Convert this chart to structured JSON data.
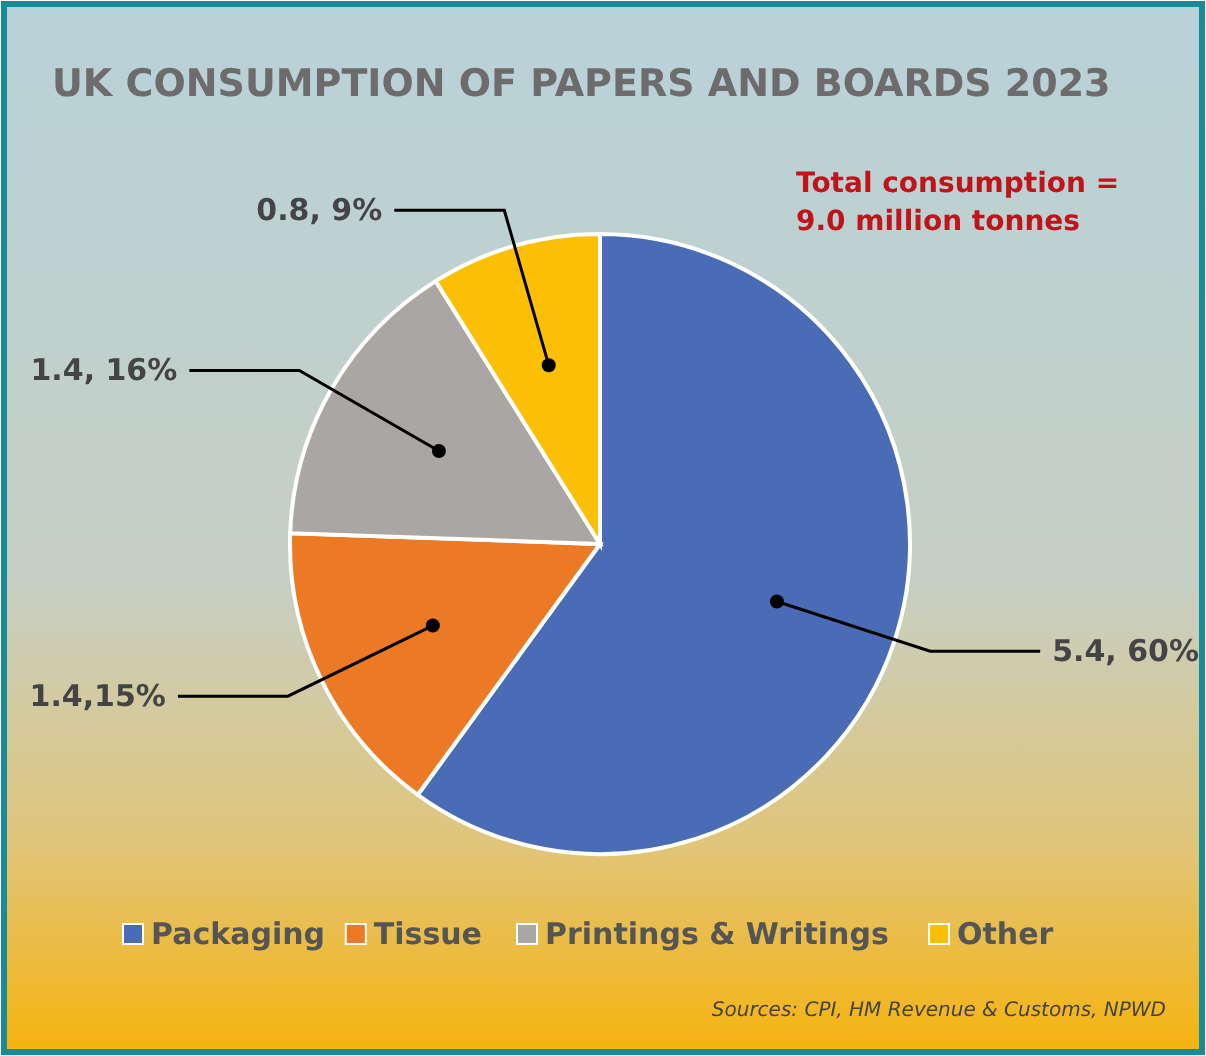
{
  "chart_data": {
    "type": "pie",
    "title": "UK CONSUMPTION OF PAPERS AND BOARDS 2023",
    "categories": [
      "Packaging",
      "Tissue",
      "Printings & Writings",
      "Other"
    ],
    "values": [
      5.4,
      1.4,
      1.4,
      0.8
    ],
    "colors": [
      "#4a6cb6",
      "#ec7a25",
      "#aaa6a3",
      "#fbbf05"
    ],
    "value_labels": [
      "5.4, 60%",
      "1.4,15%",
      "1.4, 16%",
      "0.8, 9%"
    ],
    "legend": "bottom",
    "annotations": [
      "Total consumption = 9.0 million tonnes",
      "Sources: CPI, HM Revenue & Customs, NPWD"
    ]
  }
}
